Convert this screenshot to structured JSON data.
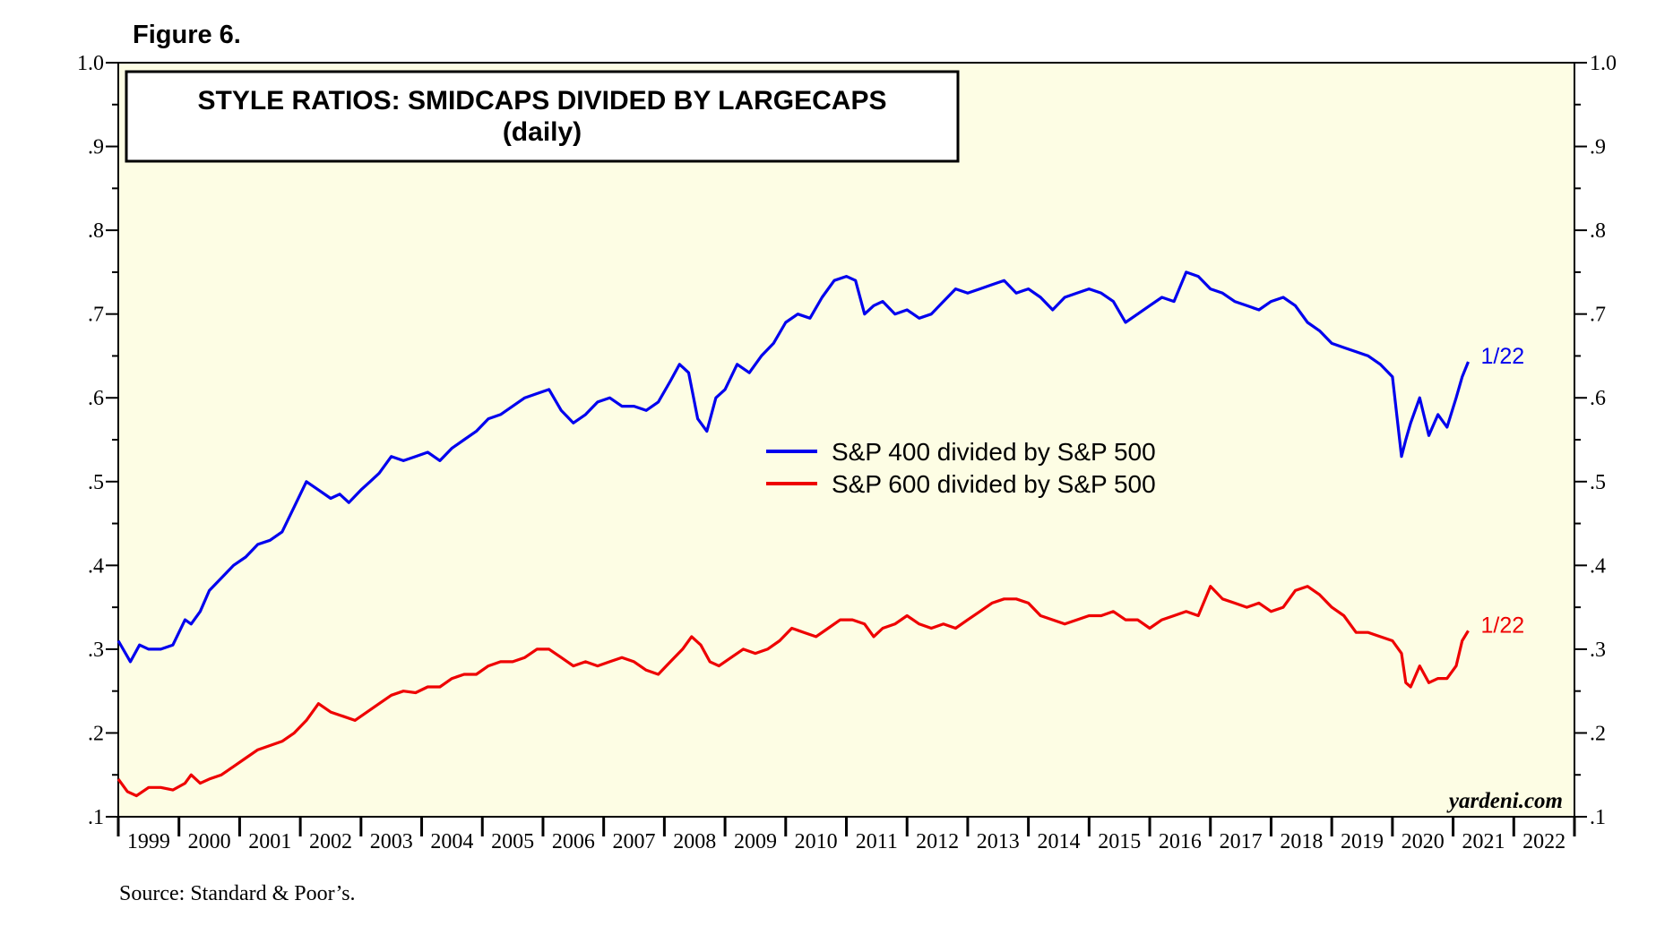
{
  "figure_label": "Figure 6.",
  "source": "Source: Standard & Poor’s.",
  "watermark": "yardeni.com",
  "colors": {
    "background": "#fdfde4",
    "series1": "#0000ee",
    "series2": "#ee0000",
    "axis": "#000000"
  },
  "chart_data": {
    "type": "line",
    "title": "STYLE RATIOS: SMIDCAPS DIVIDED BY LARGECAPS",
    "subtitle": "(daily)",
    "xlabel": "",
    "ylabel": "",
    "xlim": [
      1999,
      2023
    ],
    "ylim": [
      0.1,
      1.0
    ],
    "x_tick_labels": [
      "1999",
      "2000",
      "2001",
      "2002",
      "2003",
      "2004",
      "2005",
      "2006",
      "2007",
      "2008",
      "2009",
      "2010",
      "2011",
      "2012",
      "2013",
      "2014",
      "2015",
      "2016",
      "2017",
      "2018",
      "2019",
      "2020",
      "2021",
      "2022"
    ],
    "y_ticks": [
      0.1,
      0.2,
      0.3,
      0.4,
      0.5,
      0.6,
      0.7,
      0.8,
      0.9,
      1.0
    ],
    "y_tick_labels": [
      ".1",
      ".2",
      ".3",
      ".4",
      ".5",
      ".6",
      ".7",
      ".8",
      ".9",
      "1.0"
    ],
    "legend_position": "center",
    "series": [
      {
        "name": "S&P 400 divided by S&P 500",
        "end_label": "1/22",
        "x": [
          1999.0,
          1999.2,
          1999.35,
          1999.5,
          1999.7,
          1999.9,
          2000.1,
          2000.2,
          2000.35,
          2000.5,
          2000.7,
          2000.9,
          2001.1,
          2001.3,
          2001.5,
          2001.7,
          2001.9,
          2002.1,
          2002.3,
          2002.5,
          2002.65,
          2002.8,
          2003.0,
          2003.15,
          2003.3,
          2003.5,
          2003.7,
          2003.9,
          2004.1,
          2004.3,
          2004.5,
          2004.7,
          2004.9,
          2005.1,
          2005.3,
          2005.5,
          2005.7,
          2005.9,
          2006.1,
          2006.3,
          2006.5,
          2006.7,
          2006.9,
          2007.1,
          2007.3,
          2007.5,
          2007.7,
          2007.9,
          2008.1,
          2008.25,
          2008.4,
          2008.55,
          2008.7,
          2008.85,
          2009.0,
          2009.2,
          2009.4,
          2009.6,
          2009.8,
          2010.0,
          2010.2,
          2010.4,
          2010.6,
          2010.8,
          2011.0,
          2011.15,
          2011.3,
          2011.45,
          2011.6,
          2011.8,
          2012.0,
          2012.2,
          2012.4,
          2012.6,
          2012.8,
          2013.0,
          2013.2,
          2013.4,
          2013.6,
          2013.8,
          2014.0,
          2014.2,
          2014.4,
          2014.6,
          2014.8,
          2015.0,
          2015.2,
          2015.4,
          2015.6,
          2015.8,
          2016.0,
          2016.2,
          2016.4,
          2016.6,
          2016.8,
          2017.0,
          2017.2,
          2017.4,
          2017.6,
          2017.8,
          2018.0,
          2018.2,
          2018.4,
          2018.6,
          2018.8,
          2019.0,
          2019.2,
          2019.4,
          2019.6,
          2019.8,
          2020.0,
          2020.15,
          2020.22,
          2020.3,
          2020.45,
          2020.6,
          2020.75,
          2020.9,
          2021.05,
          2021.15,
          2021.25
        ],
        "y": [
          0.31,
          0.285,
          0.305,
          0.3,
          0.3,
          0.305,
          0.335,
          0.33,
          0.345,
          0.37,
          0.385,
          0.4,
          0.41,
          0.425,
          0.43,
          0.44,
          0.47,
          0.5,
          0.49,
          0.48,
          0.485,
          0.475,
          0.49,
          0.5,
          0.51,
          0.53,
          0.525,
          0.53,
          0.535,
          0.525,
          0.54,
          0.55,
          0.56,
          0.575,
          0.58,
          0.59,
          0.6,
          0.605,
          0.61,
          0.585,
          0.57,
          0.58,
          0.595,
          0.6,
          0.59,
          0.59,
          0.585,
          0.595,
          0.62,
          0.64,
          0.63,
          0.575,
          0.56,
          0.6,
          0.61,
          0.64,
          0.63,
          0.65,
          0.665,
          0.69,
          0.7,
          0.695,
          0.72,
          0.74,
          0.745,
          0.74,
          0.7,
          0.71,
          0.715,
          0.7,
          0.705,
          0.695,
          0.7,
          0.715,
          0.73,
          0.725,
          0.73,
          0.735,
          0.74,
          0.725,
          0.73,
          0.72,
          0.705,
          0.72,
          0.725,
          0.73,
          0.725,
          0.715,
          0.69,
          0.7,
          0.71,
          0.72,
          0.715,
          0.75,
          0.745,
          0.73,
          0.725,
          0.715,
          0.71,
          0.705,
          0.715,
          0.72,
          0.71,
          0.69,
          0.68,
          0.665,
          0.66,
          0.655,
          0.65,
          0.64,
          0.625,
          0.53,
          0.55,
          0.57,
          0.6,
          0.555,
          0.58,
          0.565,
          0.6,
          0.625,
          0.643
        ]
      },
      {
        "name": "S&P 600 divided by S&P 500",
        "end_label": "1/22",
        "x": [
          1999.0,
          1999.15,
          1999.3,
          1999.5,
          1999.7,
          1999.9,
          2000.1,
          2000.2,
          2000.35,
          2000.5,
          2000.7,
          2000.9,
          2001.1,
          2001.3,
          2001.5,
          2001.7,
          2001.9,
          2002.1,
          2002.3,
          2002.5,
          2002.7,
          2002.9,
          2003.1,
          2003.3,
          2003.5,
          2003.7,
          2003.9,
          2004.1,
          2004.3,
          2004.5,
          2004.7,
          2004.9,
          2005.1,
          2005.3,
          2005.5,
          2005.7,
          2005.9,
          2006.1,
          2006.3,
          2006.5,
          2006.7,
          2006.9,
          2007.1,
          2007.3,
          2007.5,
          2007.7,
          2007.9,
          2008.1,
          2008.3,
          2008.45,
          2008.6,
          2008.75,
          2008.9,
          2009.1,
          2009.3,
          2009.5,
          2009.7,
          2009.9,
          2010.1,
          2010.3,
          2010.5,
          2010.7,
          2010.9,
          2011.1,
          2011.3,
          2011.45,
          2011.6,
          2011.8,
          2012.0,
          2012.2,
          2012.4,
          2012.6,
          2012.8,
          2013.0,
          2013.2,
          2013.4,
          2013.6,
          2013.8,
          2014.0,
          2014.2,
          2014.4,
          2014.6,
          2014.8,
          2015.0,
          2015.2,
          2015.4,
          2015.6,
          2015.8,
          2016.0,
          2016.2,
          2016.4,
          2016.6,
          2016.8,
          2017.0,
          2017.2,
          2017.4,
          2017.6,
          2017.8,
          2018.0,
          2018.2,
          2018.4,
          2018.6,
          2018.8,
          2019.0,
          2019.2,
          2019.4,
          2019.6,
          2019.8,
          2020.0,
          2020.15,
          2020.22,
          2020.3,
          2020.45,
          2020.6,
          2020.75,
          2020.9,
          2021.05,
          2021.15,
          2021.25
        ],
        "y": [
          0.145,
          0.13,
          0.125,
          0.135,
          0.135,
          0.132,
          0.14,
          0.15,
          0.14,
          0.145,
          0.15,
          0.16,
          0.17,
          0.18,
          0.185,
          0.19,
          0.2,
          0.215,
          0.235,
          0.225,
          0.22,
          0.215,
          0.225,
          0.235,
          0.245,
          0.25,
          0.248,
          0.255,
          0.255,
          0.265,
          0.27,
          0.27,
          0.28,
          0.285,
          0.285,
          0.29,
          0.3,
          0.3,
          0.29,
          0.28,
          0.285,
          0.28,
          0.285,
          0.29,
          0.285,
          0.275,
          0.27,
          0.285,
          0.3,
          0.315,
          0.305,
          0.285,
          0.28,
          0.29,
          0.3,
          0.295,
          0.3,
          0.31,
          0.325,
          0.32,
          0.315,
          0.325,
          0.335,
          0.335,
          0.33,
          0.315,
          0.325,
          0.33,
          0.34,
          0.33,
          0.325,
          0.33,
          0.325,
          0.335,
          0.345,
          0.355,
          0.36,
          0.36,
          0.355,
          0.34,
          0.335,
          0.33,
          0.335,
          0.34,
          0.34,
          0.345,
          0.335,
          0.335,
          0.325,
          0.335,
          0.34,
          0.345,
          0.34,
          0.375,
          0.36,
          0.355,
          0.35,
          0.355,
          0.345,
          0.35,
          0.37,
          0.375,
          0.365,
          0.35,
          0.34,
          0.32,
          0.32,
          0.315,
          0.31,
          0.295,
          0.26,
          0.255,
          0.28,
          0.26,
          0.265,
          0.265,
          0.28,
          0.31,
          0.322
        ]
      }
    ]
  }
}
